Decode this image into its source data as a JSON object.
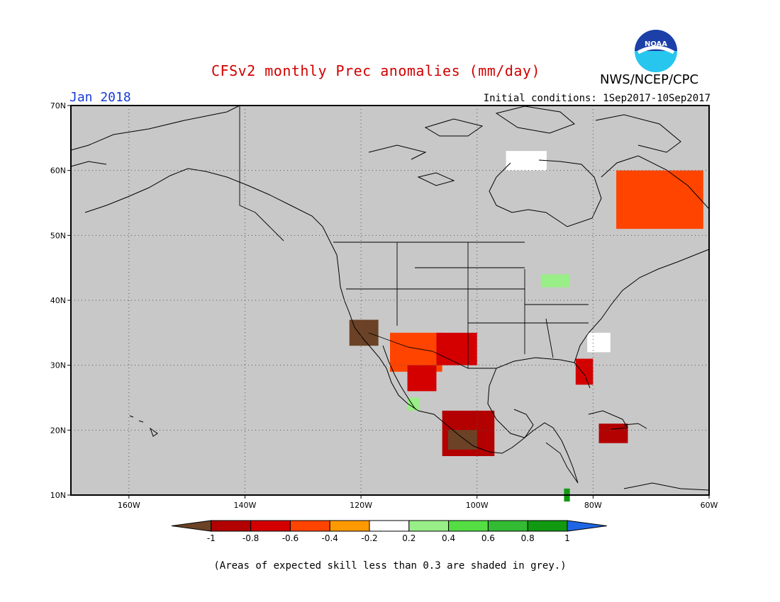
{
  "header": {
    "title": "CFSv2 monthly Prec anomalies (mm/day)",
    "agency": "NWS/NCEP/CPC",
    "logo_text": "NOAA",
    "period": "Jan 2018",
    "initial_conditions": "Initial conditions: 1Sep2017-10Sep2017"
  },
  "map": {
    "lon_range": [
      -170,
      -60
    ],
    "lat_range": [
      10,
      70
    ],
    "lat_labels": [
      "70N",
      "60N",
      "50N",
      "40N",
      "30N",
      "20N",
      "10N"
    ],
    "lat_values": [
      70,
      60,
      50,
      40,
      30,
      20,
      10
    ],
    "lon_labels": [
      "160W",
      "140W",
      "120W",
      "100W",
      "80W",
      "60W"
    ],
    "lon_values": [
      -160,
      -140,
      -120,
      -100,
      -80,
      -60
    ],
    "background_color": "#c8c8c8",
    "grid": "dotted",
    "anomaly_regions": [
      {
        "region": "California",
        "lon": [
          -122,
          -117
        ],
        "lat": [
          33,
          37
        ],
        "cls": 0
      },
      {
        "region": "Arizona",
        "lon": [
          -115,
          -106
        ],
        "lat": [
          29,
          35
        ],
        "cls": 3
      },
      {
        "region": "Sonora",
        "lon": [
          -112,
          -107
        ],
        "lat": [
          26,
          30
        ],
        "cls": 2
      },
      {
        "region": "Texas",
        "lon": [
          -107,
          -100
        ],
        "lat": [
          30,
          35
        ],
        "cls": 2
      },
      {
        "region": "Central Mexico",
        "lon": [
          -106,
          -97
        ],
        "lat": [
          16,
          23
        ],
        "cls": 1
      },
      {
        "region": "Southern Mexico",
        "lon": [
          -105,
          -100
        ],
        "lat": [
          17,
          20
        ],
        "cls": 0
      },
      {
        "region": "Florida",
        "lon": [
          -83,
          -80
        ],
        "lat": [
          27,
          31
        ],
        "cls": 2
      },
      {
        "region": "Quebec",
        "lon": [
          -76,
          -61
        ],
        "lat": [
          51,
          60
        ],
        "cls": 3
      },
      {
        "region": "Caribbean",
        "lon": [
          -79,
          -74
        ],
        "lat": [
          18,
          21
        ],
        "cls": 1
      },
      {
        "region": "Great Lakes",
        "lon": [
          -89,
          -84
        ],
        "lat": [
          42,
          44
        ],
        "cls": 6
      },
      {
        "region": "Baja",
        "lon": [
          -112,
          -110
        ],
        "lat": [
          23,
          25
        ],
        "cls": 6
      },
      {
        "region": "Central America",
        "lon": [
          -85,
          -84
        ],
        "lat": [
          9,
          11
        ],
        "cls": 9
      },
      {
        "region": "Hudson Bay",
        "lon": [
          -95,
          -88
        ],
        "lat": [
          60,
          63
        ],
        "cls": 5
      },
      {
        "region": "Carolinas",
        "lon": [
          -81,
          -77
        ],
        "lat": [
          32,
          35
        ],
        "cls": 5
      }
    ]
  },
  "colorbar": {
    "labels": [
      "-1",
      "-0.8",
      "-0.6",
      "-0.4",
      "-0.2",
      "0.2",
      "0.4",
      "0.6",
      "0.8",
      "1"
    ],
    "colors": [
      "#6b4226",
      "#b30000",
      "#d40000",
      "#ff4400",
      "#ff9900",
      "#ffffff",
      "#99ee88",
      "#55dd44",
      "#33bb33",
      "#119911",
      "#1f66e5"
    ]
  },
  "footnote": "(Areas of expected skill less than 0.3 are shaded in grey.)"
}
